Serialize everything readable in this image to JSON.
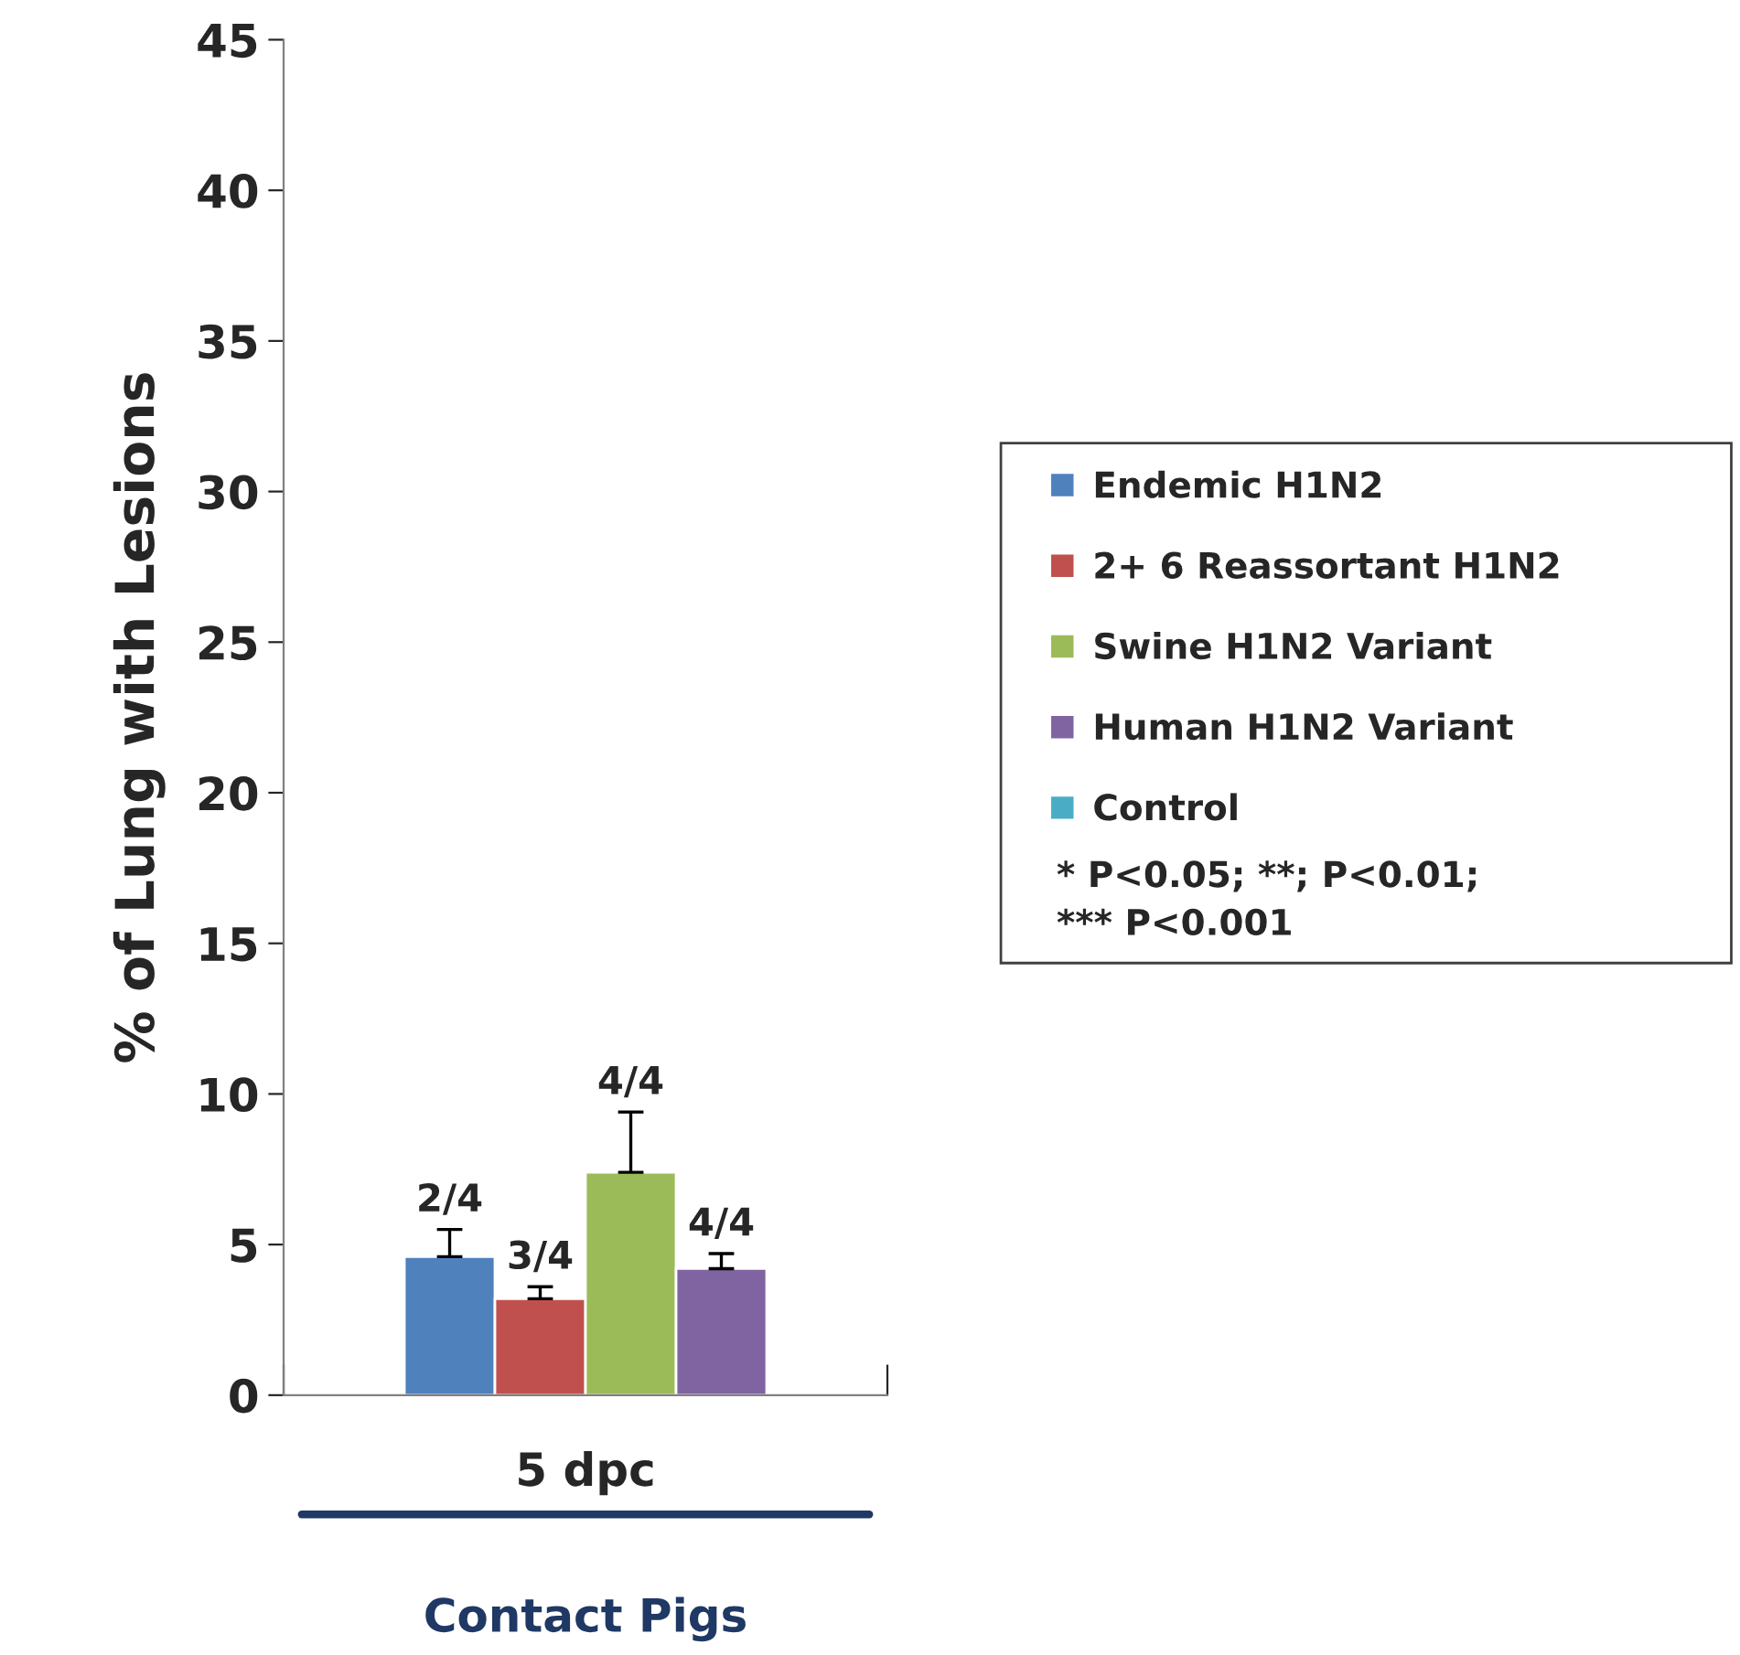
{
  "chart_data": {
    "type": "bar",
    "categories": [
      "5 dpc"
    ],
    "xlabel": "Contact Pigs",
    "ylabel": "% of Lung with Lesions",
    "ylim": [
      0,
      45
    ],
    "yticks": [
      0,
      5,
      10,
      15,
      20,
      25,
      30,
      35,
      40,
      45
    ],
    "grid": false,
    "legend": "right",
    "series": [
      {
        "name": "Endemic H1N2",
        "color": "#4f81bd",
        "values": [
          4.6
        ],
        "errors": [
          0.9
        ]
      },
      {
        "name": "2+ 6 Reassortant H1N2",
        "color": "#c0504d",
        "values": [
          3.2
        ],
        "errors": [
          0.4
        ]
      },
      {
        "name": "Swine H1N2 Variant",
        "color": "#9bbb59",
        "values": [
          7.4
        ],
        "errors": [
          2.0
        ]
      },
      {
        "name": "Human H1N2 Variant",
        "color": "#8064a2",
        "values": [
          4.2
        ],
        "errors": [
          0.5
        ]
      },
      {
        "name": "Control",
        "color": "#4bacc6",
        "values": [
          null
        ]
      }
    ],
    "annotations": [
      "2/4",
      "3/4",
      "4/4",
      "4/4",
      "* P<0.05; **; P<0.01;\n*** P<0.001"
    ]
  }
}
